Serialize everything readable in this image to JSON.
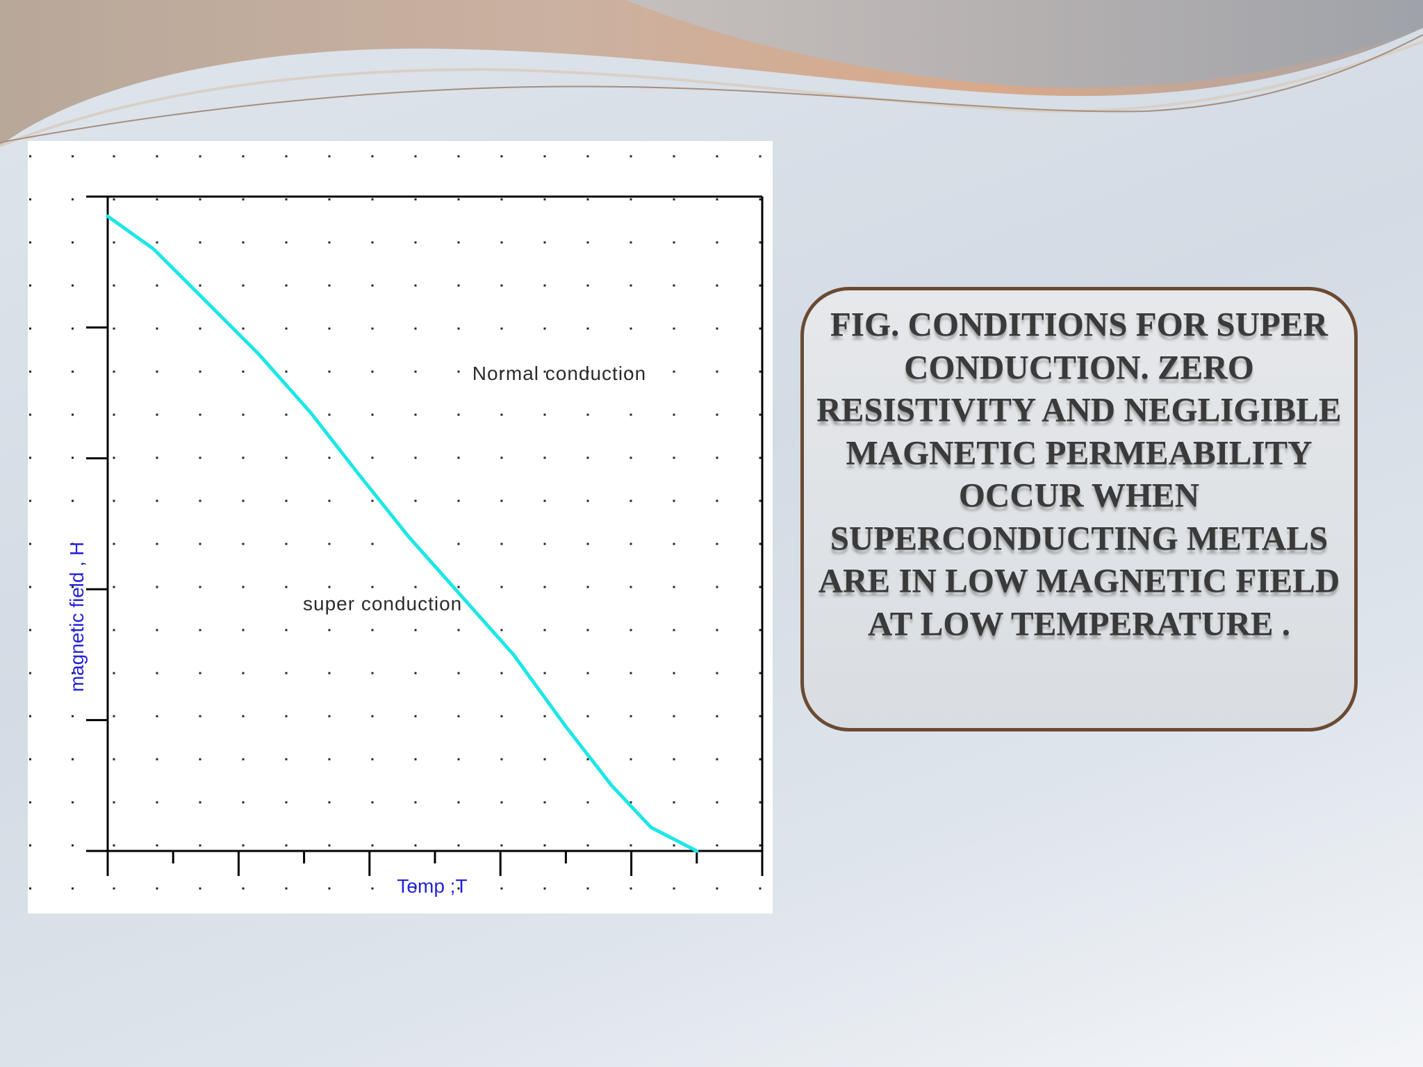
{
  "slide": {
    "caption": "FIG.  CONDITIONS FOR SUPER CONDUCTION. ZERO RESISTIVITY AND NEGLIGIBLE MAGNETIC PERMEABILITY OCCUR WHEN SUPERCONDUCTING METALS ARE IN LOW MAGNETIC FIELD AT LOW TEMPERATURE ."
  },
  "colors": {
    "curve": "#1ee6e6",
    "axis": "#000000",
    "axis_label": "#2222dd",
    "caption_border": "#6b4a33",
    "ribbon_tan": "#c9a48a",
    "ribbon_gray": "#9aa0a8"
  },
  "chart_data": {
    "type": "line",
    "title": "",
    "xlabel": "Temp ;T",
    "ylabel": "magnetic field , H",
    "xlim": [
      0,
      10
    ],
    "ylim": [
      0,
      5
    ],
    "x_ticks_major": [
      0,
      2,
      4,
      6,
      8,
      10
    ],
    "x_ticks_minor": [
      1,
      3,
      5,
      7,
      9
    ],
    "y_ticks": [
      0,
      1,
      2,
      3,
      4,
      5
    ],
    "grid": "dotted",
    "series": [
      {
        "values_x": [
          0,
          0.7,
          1.5,
          2.3,
          3.1,
          3.8,
          4.6,
          5.4,
          6.2,
          7.0,
          7.7,
          8.3,
          9.0
        ],
        "values_y": [
          4.85,
          4.6,
          4.2,
          3.8,
          3.35,
          2.9,
          2.4,
          1.95,
          1.5,
          0.95,
          0.5,
          0.18,
          0.0
        ]
      }
    ],
    "annotations": [
      {
        "text": "Normal conduction",
        "x": 6.9,
        "y": 3.6
      },
      {
        "text": "super conduction",
        "x": 4.2,
        "y": 1.84
      }
    ]
  }
}
